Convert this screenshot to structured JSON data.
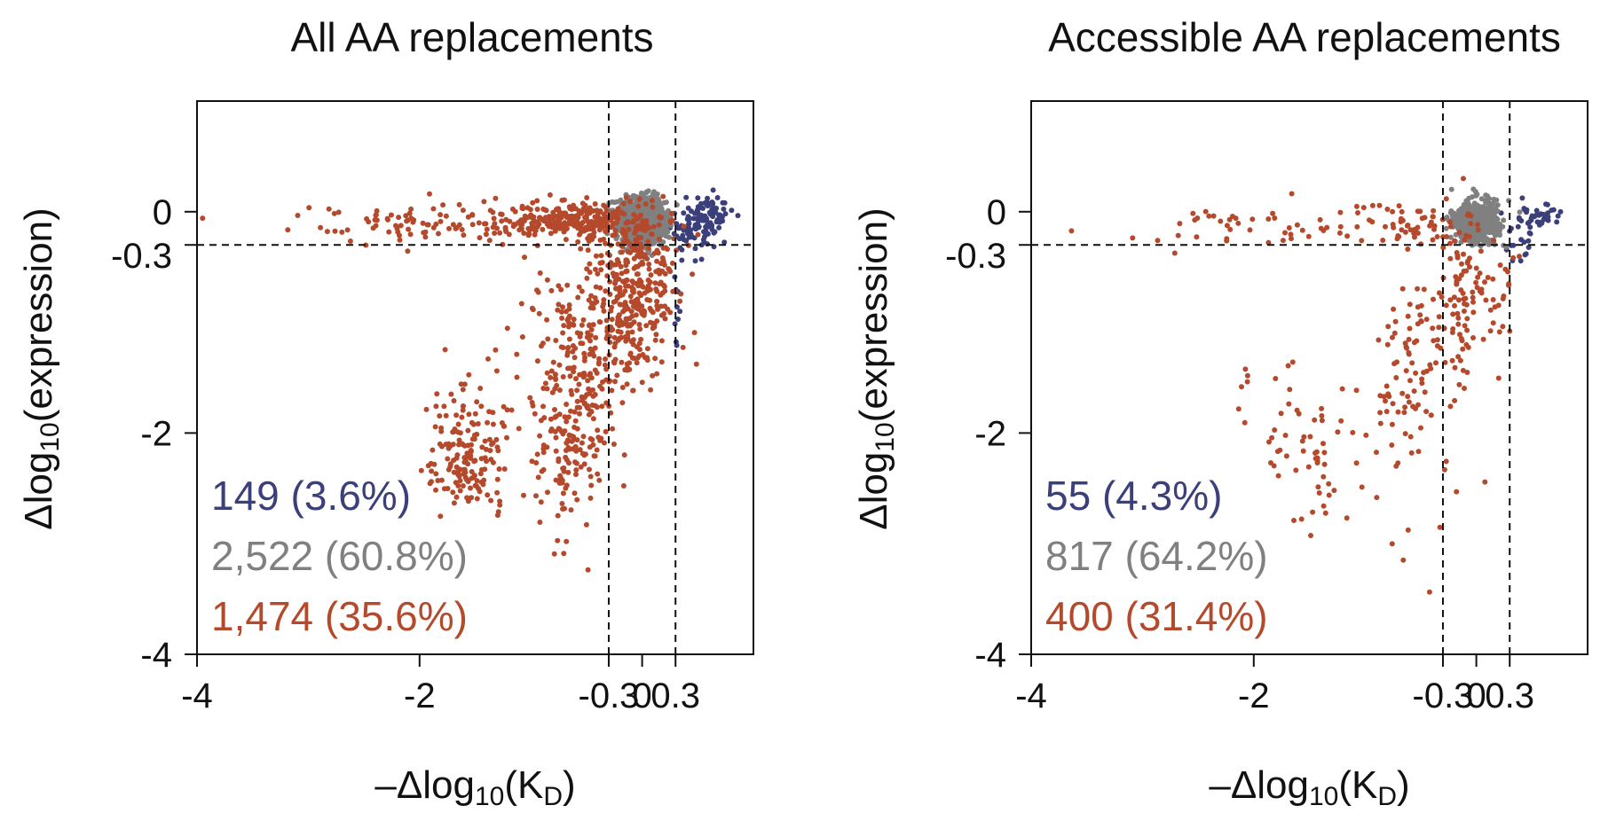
{
  "chart_data": [
    {
      "type": "scatter",
      "title": "All AA replacements",
      "xlabel": {
        "prefix": "–Δlog",
        "sub": "10",
        "mid": "(K",
        "sub2": "D",
        "suffix": ")"
      },
      "ylabel": {
        "prefix": "Δlog",
        "sub": "10",
        "suffix": "(expression)"
      },
      "xlim": [
        -4,
        1
      ],
      "ylim": [
        -4,
        1
      ],
      "xticks": [
        -4,
        -2,
        -0.3,
        0,
        0.3
      ],
      "xtick_labels": [
        "-4",
        "-2",
        "-0.3",
        "0",
        "0.3"
      ],
      "yticks": [
        0,
        -0.3,
        -2,
        -4
      ],
      "ytick_labels": [
        "0",
        "-0.3",
        "-2",
        "-4"
      ],
      "thresholds": {
        "x": [
          -0.3,
          0.3
        ],
        "y": [
          -0.3
        ]
      },
      "grid": false,
      "legend": "none",
      "series": [
        {
          "color": "#3b3f7a",
          "count_label": "149 (3.6%)",
          "count": 149,
          "clusters": [
            {
              "cx": 0.58,
              "cy": -0.05,
              "sx": 0.12,
              "sy": 0.1,
              "n": 90
            },
            {
              "cx": 0.45,
              "cy": -0.2,
              "sx": 0.1,
              "sy": 0.12,
              "n": 50
            },
            {
              "cx": 0.3,
              "cy": -0.8,
              "sx": 0.02,
              "sy": 0.15,
              "n": 9
            }
          ]
        },
        {
          "color": "#808080",
          "count_label": "2,522 (60.8%)",
          "count": 2522,
          "clusters": [
            {
              "cx": 0.0,
              "cy": -0.08,
              "sx": 0.1,
              "sy": 0.1,
              "n": 1400
            }
          ]
        },
        {
          "color": "#b5492c",
          "count_label": "1,474 (35.6%)",
          "count": 1474,
          "clusters": [
            {
              "cx": -0.6,
              "cy": -0.08,
              "sx": 0.35,
              "sy": 0.08,
              "n": 250
            },
            {
              "cx": -1.7,
              "cy": -0.1,
              "sx": 0.7,
              "sy": 0.08,
              "n": 120
            },
            {
              "cx": -0.05,
              "cy": -0.7,
              "sx": 0.18,
              "sy": 0.35,
              "n": 300
            },
            {
              "cx": -0.55,
              "cy": -1.3,
              "sx": 0.25,
              "sy": 0.45,
              "n": 250
            },
            {
              "cx": -0.6,
              "cy": -2.1,
              "sx": 0.15,
              "sy": 0.25,
              "n": 80
            },
            {
              "cx": -1.55,
              "cy": -2.3,
              "sx": 0.18,
              "sy": 0.22,
              "n": 130
            },
            {
              "cx": -1.5,
              "cy": -1.85,
              "sx": 0.2,
              "sy": 0.25,
              "n": 50
            },
            {
              "cx": -0.7,
              "cy": -2.6,
              "sx": 0.15,
              "sy": 0.25,
              "n": 25
            }
          ]
        }
      ]
    },
    {
      "type": "scatter",
      "title": "Accessible AA replacements",
      "xlabel": {
        "prefix": "–Δlog",
        "sub": "10",
        "mid": "(K",
        "sub2": "D",
        "suffix": ")"
      },
      "ylabel": {
        "prefix": "Δlog",
        "sub": "10",
        "suffix": "(expression)"
      },
      "xlim": [
        -4,
        1
      ],
      "ylim": [
        -4,
        1
      ],
      "xticks": [
        -4,
        -2,
        -0.3,
        0,
        0.3
      ],
      "xtick_labels": [
        "-4",
        "-2",
        "-0.3",
        "0",
        "0.3"
      ],
      "yticks": [
        0,
        -0.3,
        -2,
        -4
      ],
      "ytick_labels": [
        "0",
        "-0.3",
        "-2",
        "-4"
      ],
      "thresholds": {
        "x": [
          -0.3,
          0.3
        ],
        "y": [
          -0.3
        ]
      },
      "grid": false,
      "legend": "none",
      "series": [
        {
          "color": "#3b3f7a",
          "count_label": "55 (4.3%)",
          "count": 55,
          "clusters": [
            {
              "cx": 0.55,
              "cy": -0.05,
              "sx": 0.15,
              "sy": 0.08,
              "n": 40
            },
            {
              "cx": 0.38,
              "cy": -0.25,
              "sx": 0.06,
              "sy": 0.12,
              "n": 15
            }
          ]
        },
        {
          "color": "#808080",
          "count_label": "817 (64.2%)",
          "count": 817,
          "clusters": [
            {
              "cx": 0.0,
              "cy": -0.08,
              "sx": 0.1,
              "sy": 0.09,
              "n": 600
            }
          ]
        },
        {
          "color": "#b5492c",
          "count_label": "400 (31.4%)",
          "count": 400,
          "clusters": [
            {
              "cx": -0.55,
              "cy": -0.1,
              "sx": 0.3,
              "sy": 0.1,
              "n": 60
            },
            {
              "cx": -1.8,
              "cy": -0.15,
              "sx": 0.7,
              "sy": 0.1,
              "n": 50
            },
            {
              "cx": -0.05,
              "cy": -0.75,
              "sx": 0.15,
              "sy": 0.3,
              "n": 90
            },
            {
              "cx": -0.5,
              "cy": -1.4,
              "sx": 0.2,
              "sy": 0.4,
              "n": 90
            },
            {
              "cx": -1.55,
              "cy": -2.2,
              "sx": 0.2,
              "sy": 0.3,
              "n": 40
            },
            {
              "cx": -0.9,
              "cy": -2.3,
              "sx": 0.35,
              "sy": 0.4,
              "n": 30
            },
            {
              "cx": -2.0,
              "cy": -1.6,
              "sx": 0.2,
              "sy": 0.3,
              "n": 10
            }
          ]
        }
      ]
    }
  ]
}
